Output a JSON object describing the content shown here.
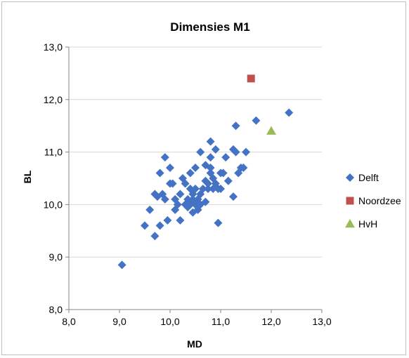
{
  "chart_data": {
    "type": "scatter",
    "title": "Dimensies M1",
    "xlabel": "MD",
    "ylabel": "BL",
    "xlim": [
      8.0,
      13.0
    ],
    "ylim": [
      8.0,
      13.0
    ],
    "xticks": [
      "8,0",
      "9,0",
      "10,0",
      "11,0",
      "12,0",
      "13,0"
    ],
    "yticks": [
      "8,0",
      "9,0",
      "10,0",
      "11,0",
      "12,0",
      "13,0"
    ],
    "grid": "horizontal",
    "legend_position": "right",
    "series": [
      {
        "name": "Delft",
        "marker": "diamond",
        "color": "#4472C4",
        "points": [
          [
            9.05,
            8.85
          ],
          [
            9.5,
            9.6
          ],
          [
            9.6,
            9.9
          ],
          [
            9.7,
            9.4
          ],
          [
            9.8,
            9.6
          ],
          [
            9.7,
            10.2
          ],
          [
            9.75,
            10.15
          ],
          [
            9.8,
            10.6
          ],
          [
            9.9,
            10.9
          ],
          [
            9.85,
            10.2
          ],
          [
            9.9,
            10.1
          ],
          [
            9.95,
            9.7
          ],
          [
            10.0,
            10.7
          ],
          [
            10.0,
            10.4
          ],
          [
            10.05,
            10.4
          ],
          [
            10.1,
            10.1
          ],
          [
            10.1,
            9.9
          ],
          [
            10.15,
            10.0
          ],
          [
            10.2,
            9.7
          ],
          [
            10.2,
            10.2
          ],
          [
            10.25,
            10.5
          ],
          [
            10.3,
            10.0
          ],
          [
            10.3,
            10.4
          ],
          [
            10.35,
            9.95
          ],
          [
            10.35,
            10.1
          ],
          [
            10.4,
            10.0
          ],
          [
            10.4,
            10.6
          ],
          [
            10.4,
            10.3
          ],
          [
            10.45,
            9.85
          ],
          [
            10.45,
            10.1
          ],
          [
            10.45,
            10.2
          ],
          [
            10.5,
            10.7
          ],
          [
            10.5,
            10.0
          ],
          [
            10.5,
            10.3
          ],
          [
            10.55,
            9.9
          ],
          [
            10.55,
            10.1
          ],
          [
            10.6,
            10.0
          ],
          [
            10.6,
            10.2
          ],
          [
            10.6,
            11.0
          ],
          [
            10.65,
            10.3
          ],
          [
            10.7,
            10.05
          ],
          [
            10.7,
            10.45
          ],
          [
            10.7,
            10.75
          ],
          [
            10.75,
            10.4
          ],
          [
            10.75,
            10.3
          ],
          [
            10.8,
            10.6
          ],
          [
            10.8,
            10.9
          ],
          [
            10.8,
            11.2
          ],
          [
            10.8,
            10.7
          ],
          [
            10.85,
            10.3
          ],
          [
            10.85,
            10.5
          ],
          [
            10.9,
            11.05
          ],
          [
            10.9,
            10.4
          ],
          [
            10.95,
            10.3
          ],
          [
            10.95,
            9.65
          ],
          [
            11.0,
            10.6
          ],
          [
            11.0,
            10.3
          ],
          [
            11.05,
            10.6
          ],
          [
            11.1,
            10.9
          ],
          [
            11.15,
            10.45
          ],
          [
            11.25,
            11.05
          ],
          [
            11.3,
            11.0
          ],
          [
            11.25,
            10.15
          ],
          [
            11.3,
            11.5
          ],
          [
            11.35,
            10.6
          ],
          [
            11.4,
            10.7
          ],
          [
            11.45,
            10.7
          ],
          [
            11.5,
            11.0
          ],
          [
            11.7,
            11.6
          ],
          [
            12.35,
            11.75
          ]
        ]
      },
      {
        "name": "Noordzee",
        "marker": "square",
        "color": "#C0504D",
        "points": [
          [
            11.6,
            12.4
          ]
        ]
      },
      {
        "name": "HvH",
        "marker": "triangle",
        "color": "#9BBB59",
        "points": [
          [
            12.0,
            11.4
          ]
        ]
      }
    ]
  }
}
